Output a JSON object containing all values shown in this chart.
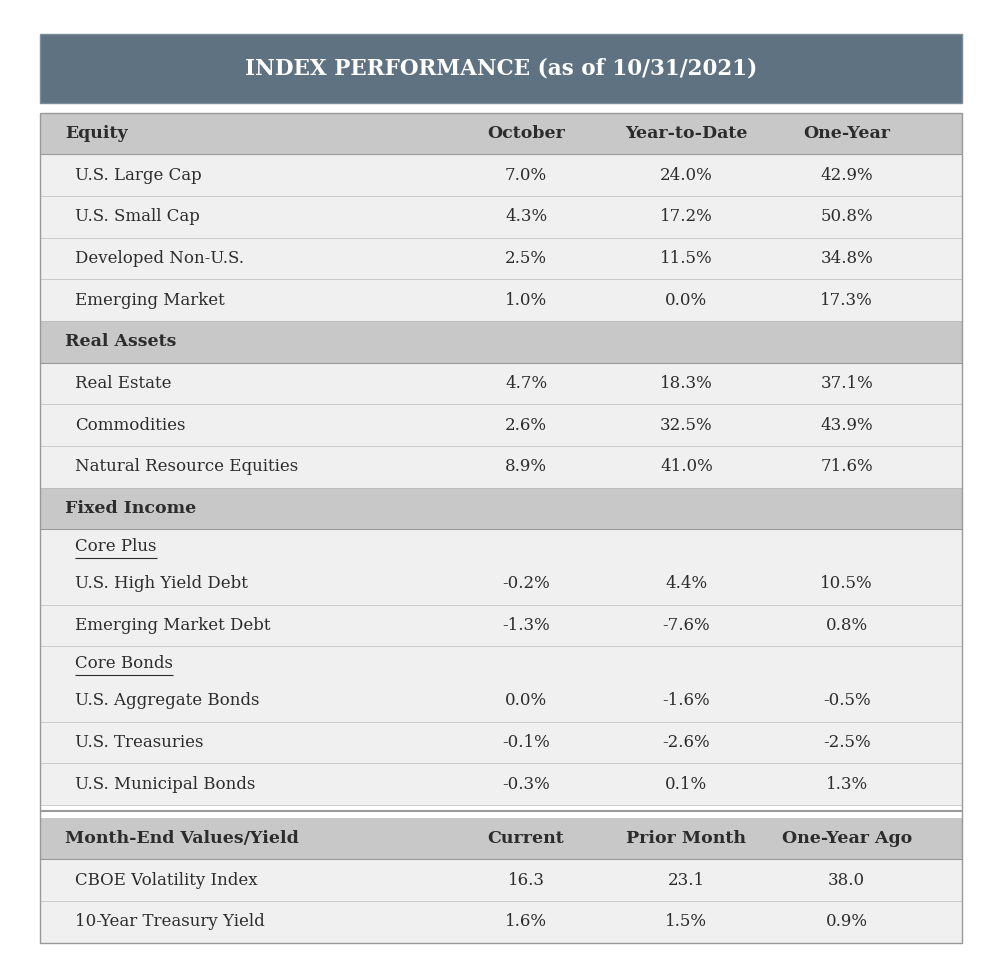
{
  "title": "INDEX PERFORMANCE (as of 10/31/2021)",
  "title_bg_color": "#5f7281",
  "title_text_color": "#ffffff",
  "section_bg_color": "#c8c8c8",
  "row_bg_color": "#f0f0f0",
  "text_color": "#2c2c2c",
  "rows": [
    {
      "type": "section_header",
      "label": "Equity",
      "col1": "October",
      "col2": "Year-to-Date",
      "col3": "One-Year"
    },
    {
      "type": "data",
      "label": "U.S. Large Cap",
      "col1": "7.0%",
      "col2": "24.0%",
      "col3": "42.9%"
    },
    {
      "type": "data",
      "label": "U.S. Small Cap",
      "col1": "4.3%",
      "col2": "17.2%",
      "col3": "50.8%"
    },
    {
      "type": "data",
      "label": "Developed Non-U.S.",
      "col1": "2.5%",
      "col2": "11.5%",
      "col3": "34.8%"
    },
    {
      "type": "data",
      "label": "Emerging Market",
      "col1": "1.0%",
      "col2": "0.0%",
      "col3": "17.3%"
    },
    {
      "type": "section_header",
      "label": "Real Assets",
      "col1": "",
      "col2": "",
      "col3": ""
    },
    {
      "type": "data",
      "label": "Real Estate",
      "col1": "4.7%",
      "col2": "18.3%",
      "col3": "37.1%"
    },
    {
      "type": "data",
      "label": "Commodities",
      "col1": "2.6%",
      "col2": "32.5%",
      "col3": "43.9%"
    },
    {
      "type": "data",
      "label": "Natural Resource Equities",
      "col1": "8.9%",
      "col2": "41.0%",
      "col3": "71.6%"
    },
    {
      "type": "section_header",
      "label": "Fixed Income",
      "col1": "",
      "col2": "",
      "col3": ""
    },
    {
      "type": "subsection",
      "label": "Core Plus",
      "col1": "",
      "col2": "",
      "col3": ""
    },
    {
      "type": "data",
      "label": "U.S. High Yield Debt",
      "col1": "-0.2%",
      "col2": "4.4%",
      "col3": "10.5%"
    },
    {
      "type": "data",
      "label": "Emerging Market Debt",
      "col1": "-1.3%",
      "col2": "-7.6%",
      "col3": "0.8%"
    },
    {
      "type": "subsection",
      "label": "Core Bonds",
      "col1": "",
      "col2": "",
      "col3": ""
    },
    {
      "type": "data",
      "label": "U.S. Aggregate Bonds",
      "col1": "0.0%",
      "col2": "-1.6%",
      "col3": "-0.5%"
    },
    {
      "type": "data",
      "label": "U.S. Treasuries",
      "col1": "-0.1%",
      "col2": "-2.6%",
      "col3": "-2.5%"
    },
    {
      "type": "data",
      "label": "U.S. Municipal Bonds",
      "col1": "-0.3%",
      "col2": "0.1%",
      "col3": "1.3%"
    },
    {
      "type": "divider"
    },
    {
      "type": "section_header2",
      "label": "Month-End Values/Yield",
      "col1": "Current",
      "col2": "Prior Month",
      "col3": "One-Year Ago"
    },
    {
      "type": "data",
      "label": "CBOE Volatility Index",
      "col1": "16.3",
      "col2": "23.1",
      "col3": "38.0"
    },
    {
      "type": "data",
      "label": "10-Year Treasury Yield",
      "col1": "1.6%",
      "col2": "1.5%",
      "col3": "0.9%"
    }
  ],
  "fig_width": 10.02,
  "fig_height": 9.64
}
